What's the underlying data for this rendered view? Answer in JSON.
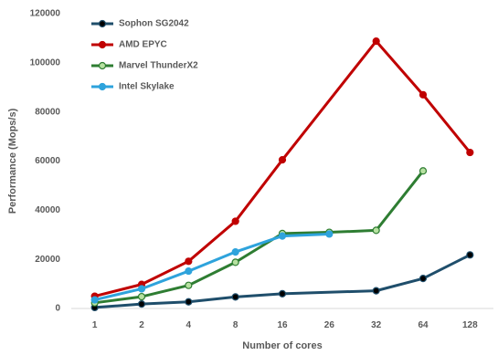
{
  "chart_data": {
    "type": "line",
    "categories": [
      "1",
      "2",
      "4",
      "8",
      "16",
      "26",
      "32",
      "64",
      "128"
    ],
    "xlabel": "Number of cores",
    "ylabel": "Performance (Mops/s)",
    "ylim": [
      0,
      120000
    ],
    "yticks": [
      "0",
      "20000",
      "40000",
      "60000",
      "80000",
      "100000",
      "120000"
    ],
    "ytick_values": [
      0,
      20000,
      40000,
      60000,
      80000,
      100000,
      120000
    ],
    "grid": false,
    "legend_position": "top-left",
    "series": [
      {
        "name": "Sophon SG2042",
        "color": "#1f4e6b",
        "marker_fill": "#000000",
        "values": [
          400,
          1800,
          2700,
          4700,
          6000,
          null,
          7200,
          12200,
          21800
        ]
      },
      {
        "name": "AMD EPYC",
        "color": "#c00000",
        "marker_fill": "#c00000",
        "values": [
          5000,
          9800,
          19200,
          35500,
          60500,
          null,
          108800,
          87000,
          63500
        ]
      },
      {
        "name": "Marvel ThunderX2",
        "color": "#2e7d32",
        "marker_fill": "#b7e1a1",
        "values": [
          2300,
          4800,
          9400,
          18800,
          30500,
          31000,
          31800,
          56000,
          null
        ]
      },
      {
        "name": "Intel Skylake",
        "color": "#2ea3dc",
        "marker_fill": "#2ea3dc",
        "values": [
          3500,
          8000,
          15200,
          23000,
          29500,
          30300,
          null,
          null,
          null
        ]
      }
    ]
  }
}
